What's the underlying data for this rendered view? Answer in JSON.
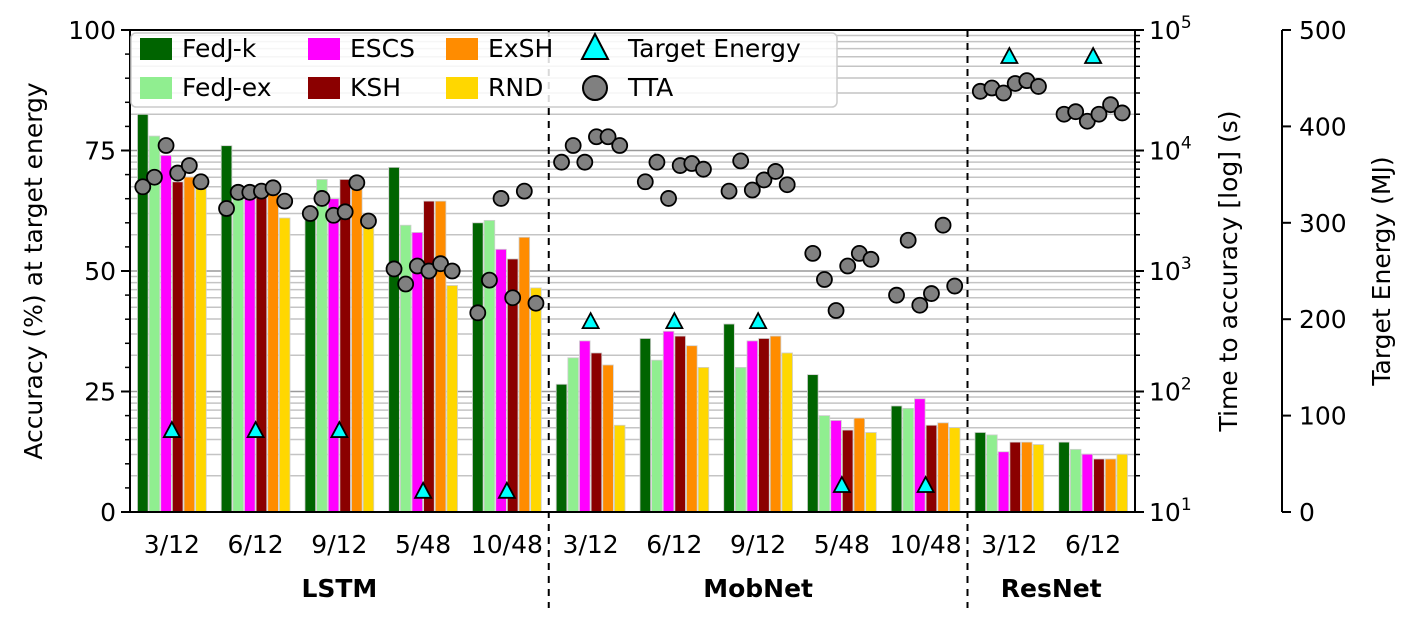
{
  "chart_data": {
    "type": "bar",
    "categories": [
      "3/12",
      "6/12",
      "9/12",
      "5/48",
      "10/48",
      "3/12",
      "6/12",
      "9/12",
      "5/48",
      "10/48",
      "3/12",
      "6/12"
    ],
    "groups": [
      {
        "label": "LSTM",
        "count": 5
      },
      {
        "label": "MobNet",
        "count": 5
      },
      {
        "label": "ResNet",
        "count": 2
      }
    ],
    "ylabel": "Accuracy (%) at target energy",
    "ylim": [
      0,
      100
    ],
    "yticks": [
      "0",
      "25",
      "50",
      "75",
      "100"
    ],
    "series": [
      {
        "name": "FedJ-k",
        "color": "#006400",
        "values": [
          82.5,
          76,
          62,
          71.5,
          60,
          26.5,
          36,
          39,
          28.5,
          22,
          16.5,
          14.5
        ]
      },
      {
        "name": "FedJ-ex",
        "color": "#90ee90",
        "values": [
          78,
          67,
          69,
          59.5,
          60.5,
          32,
          31.5,
          30,
          20,
          21.5,
          16,
          13
        ]
      },
      {
        "name": "ESCS",
        "color": "#ff00ff",
        "values": [
          74,
          66,
          65,
          58,
          54.5,
          35.5,
          37.5,
          35.5,
          19,
          23.5,
          12.5,
          12
        ]
      },
      {
        "name": "KSH",
        "color": "#8b0000",
        "values": [
          68.5,
          66,
          69,
          64.5,
          52.5,
          33,
          36.5,
          36,
          17,
          18,
          14.5,
          11
        ]
      },
      {
        "name": "ExSH",
        "color": "#ff8c00",
        "values": [
          69.5,
          66,
          68,
          64.5,
          57,
          30.5,
          34.5,
          36.5,
          19.5,
          18.5,
          14.5,
          11
        ]
      },
      {
        "name": "RND",
        "color": "#ffd700",
        "values": [
          68.5,
          61,
          60,
          47,
          46.5,
          18,
          30,
          33,
          16.5,
          17.5,
          14,
          12
        ]
      }
    ],
    "right_axis_time": {
      "label": "Time to accuracy [log] (s)",
      "scale": "log",
      "ylim": [
        10,
        100000
      ],
      "ticks": [
        {
          "base": "10",
          "exp": "1"
        },
        {
          "base": "10",
          "exp": "2"
        },
        {
          "base": "10",
          "exp": "3"
        },
        {
          "base": "10",
          "exp": "4"
        },
        {
          "base": "10",
          "exp": "5"
        }
      ],
      "tta_series": {
        "name": "TTA",
        "color": "#808080",
        "values": [
          [
            5000,
            6000,
            11000,
            6500,
            7500,
            5500
          ],
          [
            3300,
            4500,
            4500,
            4600,
            4900,
            3800
          ],
          [
            3000,
            4000,
            2900,
            3100,
            5400,
            2600
          ],
          [
            1040,
            780,
            1100,
            1000,
            1150,
            1000
          ],
          [
            450,
            840,
            4000,
            600,
            4600,
            540
          ],
          [
            8000,
            11000,
            8000,
            13000,
            13000,
            11000
          ],
          [
            5500,
            8000,
            4000,
            7500,
            7800,
            7000
          ],
          [
            4600,
            8200,
            4700,
            5700,
            6700,
            5200
          ],
          [
            1400,
            850,
            470,
            1100,
            1400,
            1250
          ],
          [
            630,
            1800,
            520,
            650,
            2400,
            750
          ],
          [
            31000,
            33000,
            30000,
            36000,
            38000,
            34000
          ],
          [
            20000,
            21000,
            17500,
            20000,
            24000,
            20500
          ]
        ]
      }
    },
    "right_axis_energy": {
      "label": "Target Energy (MJ)",
      "ylim": [
        0,
        500
      ],
      "ticks": [
        "0",
        "100",
        "200",
        "300",
        "400",
        "500"
      ],
      "target_series": {
        "name": "Target Energy",
        "color": "#00ffff",
        "values": [
          85,
          85,
          85,
          22,
          22,
          198,
          198,
          198,
          28,
          28,
          473,
          473
        ]
      }
    },
    "legend": {
      "placement": "top-left",
      "entries": [
        "FedJ-k",
        "FedJ-ex",
        "ESCS",
        "KSH",
        "ExSH",
        "RND",
        "Target Energy",
        "TTA"
      ]
    },
    "grid": true
  }
}
